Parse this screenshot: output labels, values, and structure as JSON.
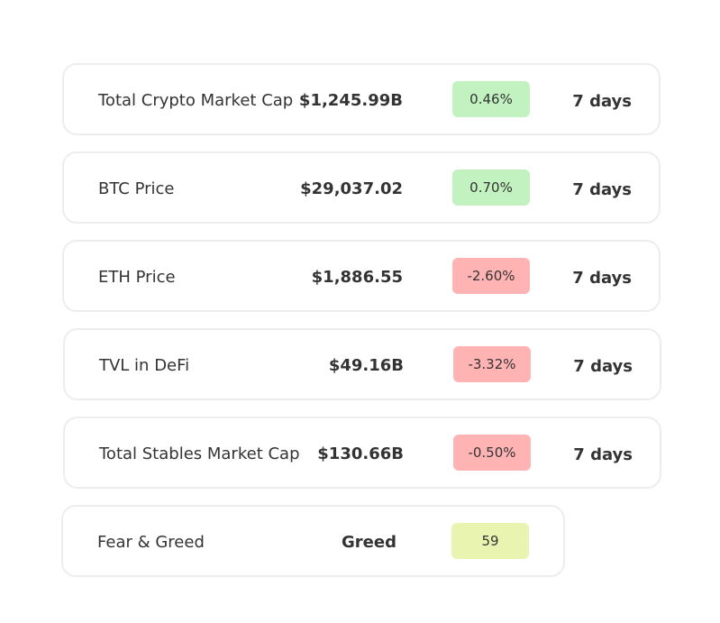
{
  "colors": {
    "positive": "#c2f2bf",
    "negative": "#ffb3b3",
    "neutral": "#eaf4b1"
  },
  "metrics": [
    {
      "label": "Total Crypto Market Cap",
      "value": "$1,245.99B",
      "change": "0.46%",
      "trend": "positive",
      "period": "7 days"
    },
    {
      "label": "BTC Price",
      "value": "$29,037.02",
      "change": "0.70%",
      "trend": "positive",
      "period": "7 days"
    },
    {
      "label": "ETH Price",
      "value": "$1,886.55",
      "change": "-2.60%",
      "trend": "negative",
      "period": "7 days"
    },
    {
      "label": "TVL in DeFi",
      "value": "$49.16B",
      "change": "-3.32%",
      "trend": "negative",
      "period": "7 days"
    },
    {
      "label": "Total Stables Market Cap",
      "value": "$130.66B",
      "change": "-0.50%",
      "trend": "negative",
      "period": "7 days"
    }
  ],
  "fear_greed": {
    "label": "Fear & Greed",
    "value": "Greed",
    "index": "59"
  }
}
